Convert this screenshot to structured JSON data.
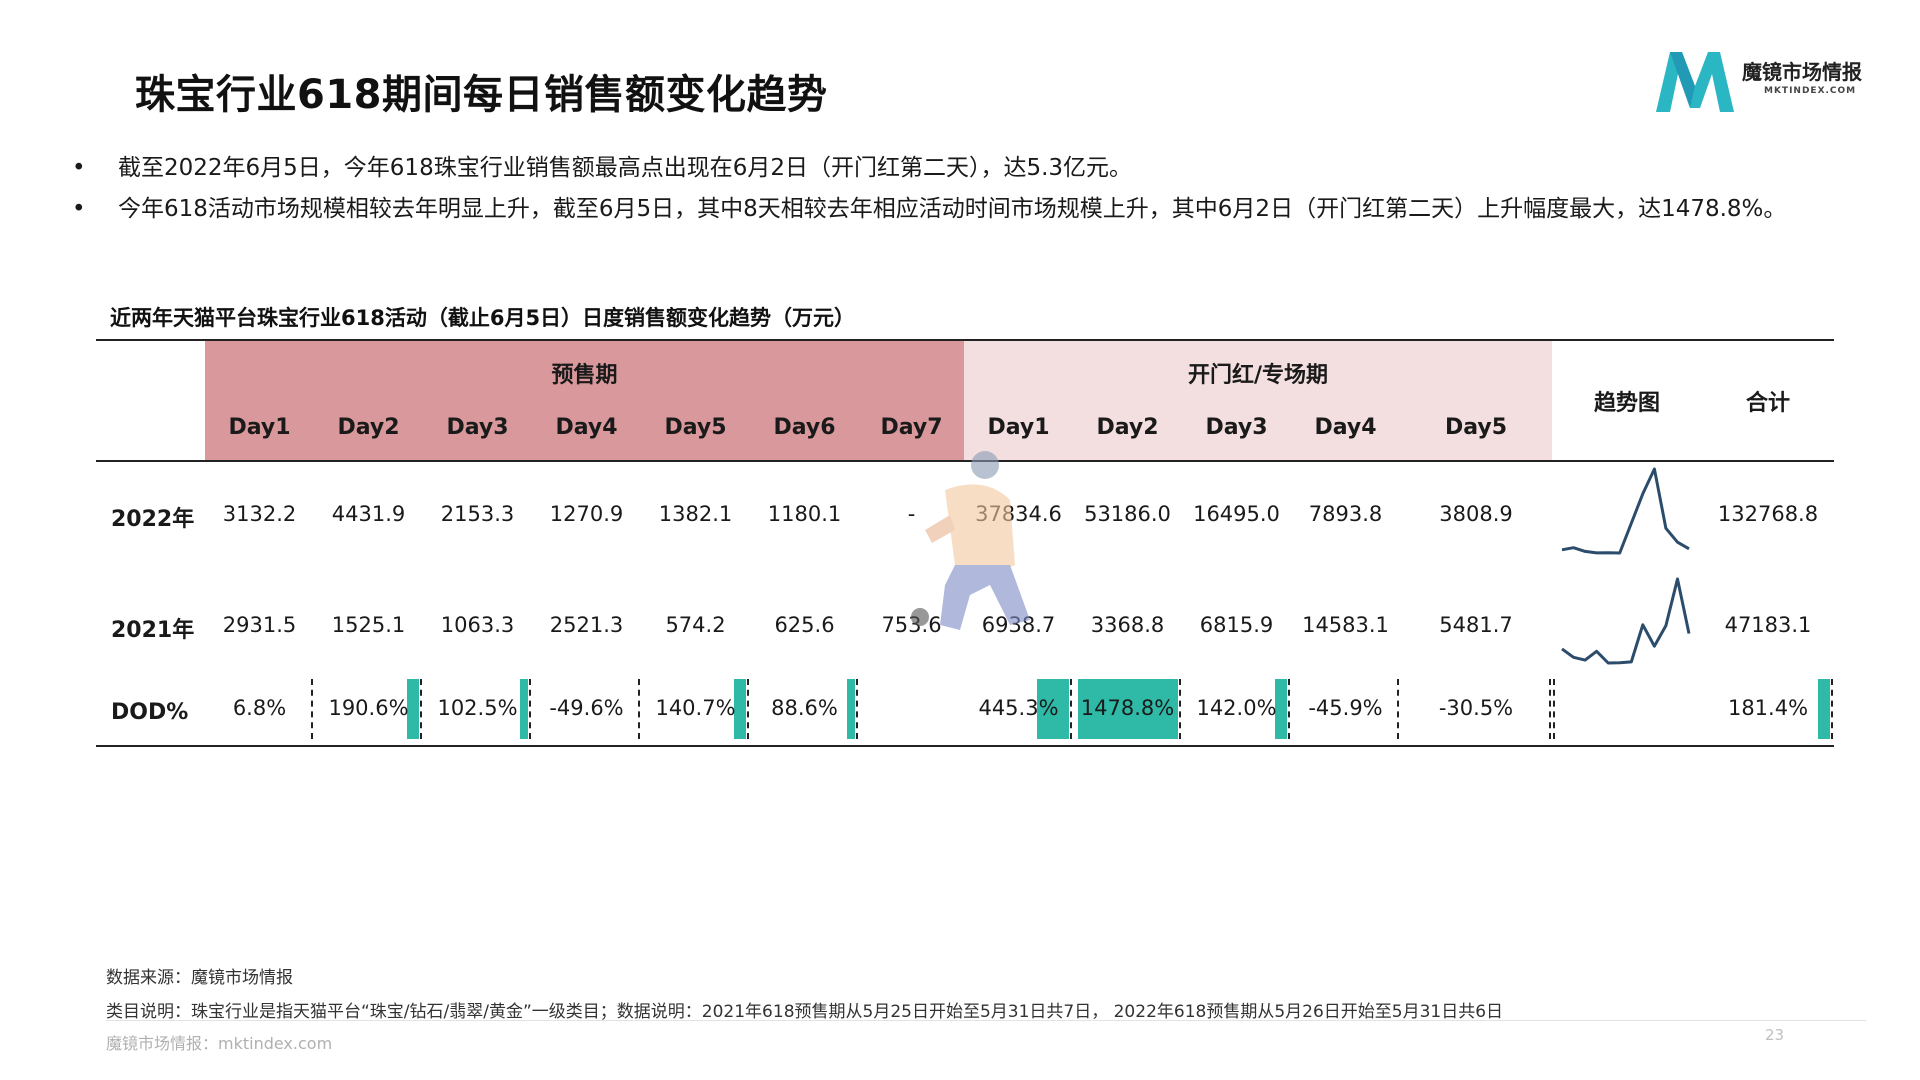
{
  "title": "珠宝行业618期间每日销售额变化趋势",
  "logo": {
    "name": "魔镜市场情报",
    "sub": "MKTINDEX.COM"
  },
  "bullets": [
    "截至2022年6月5日，今年618珠宝行业销售额最高点出现在6月2日（开门红第二天），达5.3亿元。",
    "今年618活动市场规模相较去年明显上升，截至6月5日，其中8天相较去年相应活动时间市场规模上升，其中6月2日（开门红第二天）上升幅度最大，达1478.8%。"
  ],
  "table": {
    "caption": "近两年天猫平台珠宝行业618活动（截止6月5日）日度销售额变化趋势（万元）",
    "group_presale": "预售期",
    "group_opening": "开门红/专场期",
    "trend_header": "趋势图",
    "total_header": "合计",
    "presale_days": [
      "Day1",
      "Day2",
      "Day3",
      "Day4",
      "Day5",
      "Day6",
      "Day7"
    ],
    "opening_days": [
      "Day1",
      "Day2",
      "Day3",
      "Day4",
      "Day5"
    ],
    "rows": [
      {
        "label": "2022年",
        "values": [
          "3132.2",
          "4431.9",
          "2153.3",
          "1270.9",
          "1382.1",
          "1180.1",
          "-",
          "37834.6",
          "53186.0",
          "16495.0",
          "7893.8",
          "3808.9"
        ],
        "total": "132768.8"
      },
      {
        "label": "2021年",
        "values": [
          "2931.5",
          "1525.1",
          "1063.3",
          "2521.3",
          "574.2",
          "625.6",
          "753.6",
          "6938.7",
          "3368.8",
          "6815.9",
          "14583.1",
          "5481.7"
        ],
        "total": "47183.1"
      }
    ],
    "dod": {
      "label": "DOD%",
      "values": [
        "6.8%",
        "190.6%",
        "102.5%",
        "-49.6%",
        "140.7%",
        "88.6%",
        "",
        "445.3%",
        "1478.8%",
        "142.0%",
        "-45.9%",
        "-30.5%"
      ],
      "total": "181.4%"
    }
  },
  "chart_data": {
    "type": "line",
    "title": "",
    "categories": [
      "Day1",
      "Day2",
      "Day3",
      "Day4",
      "Day5",
      "Day6",
      "Day7",
      "Day1",
      "Day2",
      "Day3",
      "Day4",
      "Day5"
    ],
    "series": [
      {
        "name": "2022年",
        "values": [
          3132.2,
          4431.9,
          2153.3,
          1270.9,
          1382.1,
          1180.1,
          null,
          37834.6,
          53186.0,
          16495.0,
          7893.8,
          3808.9
        ]
      },
      {
        "name": "2021年",
        "values": [
          2931.5,
          1525.1,
          1063.3,
          2521.3,
          574.2,
          625.6,
          753.6,
          6938.7,
          3368.8,
          6815.9,
          14583.1,
          5481.7
        ]
      }
    ],
    "dod_percent": [
      6.8,
      190.6,
      102.5,
      -49.6,
      140.7,
      88.6,
      null,
      445.3,
      1478.8,
      142.0,
      -45.9,
      -30.5
    ],
    "dod_total_percent": 181.4
  },
  "colors": {
    "presale_band": "#d9989b",
    "opening_band": "#f3dfe0",
    "dod_bar": "#2fb9a7",
    "logo": "#2bb6c4"
  },
  "footer": {
    "source": "数据来源：魔镜市场情报",
    "note": "类目说明：珠宝行业是指天猫平台“珠宝/钻石/翡翠/黄金”一级类目；数据说明：2021年618预售期从5月25日开始至5月31日共7日，  2022年618预售期从5月26日开始至5月31日共6日",
    "url": "魔镜市场情报：mktindex.com",
    "page": "23"
  }
}
